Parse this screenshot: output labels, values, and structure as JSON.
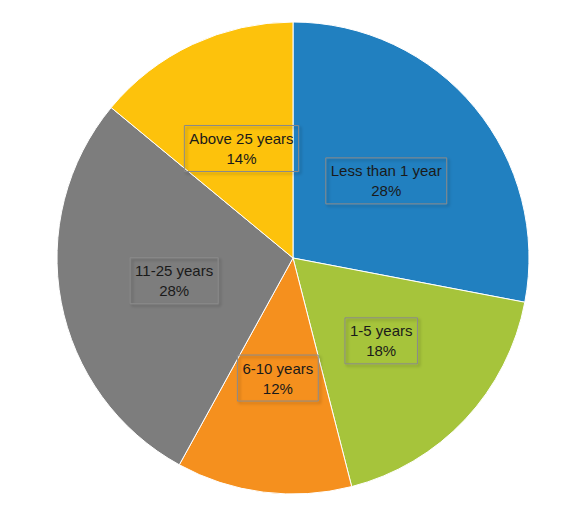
{
  "chart_data": {
    "type": "pie",
    "categories": [
      "Less than 1 year",
      "1-5 years",
      "6-10 years",
      "11-25 years",
      "Above 25 years"
    ],
    "values": [
      28,
      18,
      12,
      28,
      14
    ],
    "value_labels": [
      "28%",
      "18%",
      "12%",
      "28%",
      "14%"
    ],
    "colors": [
      "#2180c0",
      "#a6c43b",
      "#f5901e",
      "#7d7d7d",
      "#fdc20c"
    ],
    "data_labels": true
  }
}
